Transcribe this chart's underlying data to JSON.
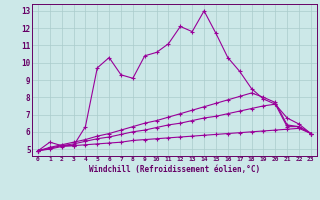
{
  "xlabel": "Windchill (Refroidissement éolien,°C)",
  "bg_color": "#cce8e8",
  "grid_color": "#aacccc",
  "line_color": "#990099",
  "xlim": [
    -0.5,
    23.5
  ],
  "ylim": [
    4.6,
    13.4
  ],
  "xticks": [
    0,
    1,
    2,
    3,
    4,
    5,
    6,
    7,
    8,
    9,
    10,
    11,
    12,
    13,
    14,
    15,
    16,
    17,
    18,
    19,
    20,
    21,
    22,
    23
  ],
  "yticks": [
    5,
    6,
    7,
    8,
    9,
    10,
    11,
    12,
    13
  ],
  "line1_x": [
    0,
    1,
    2,
    3,
    4,
    5,
    6,
    7,
    8,
    9,
    10,
    11,
    12,
    13,
    14,
    15,
    16,
    17,
    18,
    19,
    20,
    21,
    22,
    23
  ],
  "line1_y": [
    4.9,
    5.4,
    5.2,
    5.2,
    6.3,
    9.7,
    10.3,
    9.3,
    9.1,
    10.4,
    10.6,
    11.1,
    12.1,
    11.8,
    13.0,
    11.7,
    10.3,
    9.5,
    8.5,
    7.9,
    7.6,
    6.3,
    6.3,
    5.9
  ],
  "line2_x": [
    0,
    1,
    2,
    3,
    4,
    5,
    6,
    7,
    8,
    9,
    10,
    11,
    12,
    13,
    14,
    15,
    16,
    17,
    18,
    19,
    20,
    21,
    22,
    23
  ],
  "line2_y": [
    4.9,
    5.0,
    5.15,
    5.2,
    5.25,
    5.3,
    5.35,
    5.4,
    5.5,
    5.55,
    5.6,
    5.65,
    5.7,
    5.75,
    5.8,
    5.85,
    5.9,
    5.95,
    6.0,
    6.05,
    6.1,
    6.15,
    6.2,
    5.9
  ],
  "line3_x": [
    0,
    1,
    2,
    3,
    4,
    5,
    6,
    7,
    8,
    9,
    10,
    11,
    12,
    13,
    14,
    15,
    16,
    17,
    18,
    19,
    20,
    21,
    22,
    23
  ],
  "line3_y": [
    4.9,
    5.05,
    5.2,
    5.3,
    5.45,
    5.6,
    5.7,
    5.85,
    6.0,
    6.1,
    6.25,
    6.4,
    6.5,
    6.65,
    6.8,
    6.9,
    7.05,
    7.2,
    7.35,
    7.5,
    7.6,
    6.8,
    6.45,
    5.9
  ],
  "line4_x": [
    0,
    1,
    2,
    3,
    4,
    5,
    6,
    7,
    8,
    9,
    10,
    11,
    12,
    13,
    14,
    15,
    16,
    17,
    18,
    19,
    20,
    21,
    22,
    23
  ],
  "line4_y": [
    4.9,
    5.1,
    5.25,
    5.4,
    5.55,
    5.75,
    5.9,
    6.1,
    6.3,
    6.5,
    6.65,
    6.85,
    7.05,
    7.25,
    7.45,
    7.65,
    7.85,
    8.05,
    8.25,
    8.0,
    7.7,
    6.4,
    6.3,
    5.9
  ]
}
